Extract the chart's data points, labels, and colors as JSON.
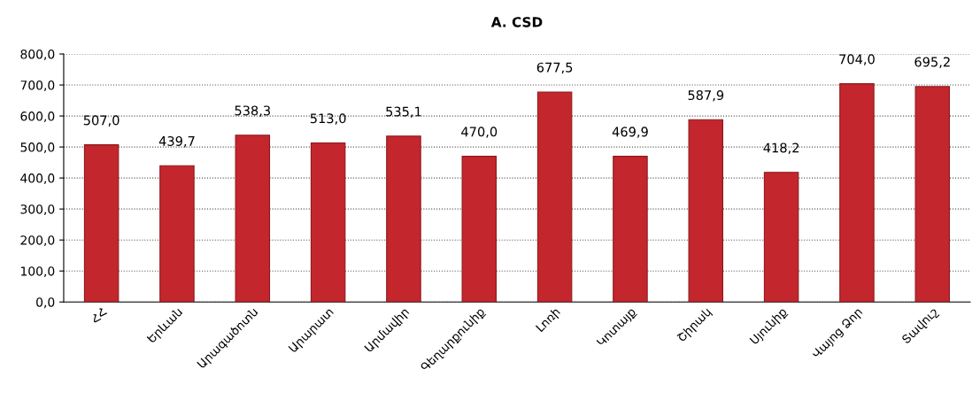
{
  "chart_data": {
    "type": "bar",
    "title": "A. CSD",
    "categories": [
      "ՀՀ",
      "Երևան",
      "Արագածոտն",
      "Արարատ",
      "Արմավիր",
      "Գեղարքունիք",
      "Լոռի",
      "Կոտայք",
      "Շիրակ",
      "Սյունիք",
      "Վայոց Ձոր",
      "Տավուշ"
    ],
    "values": [
      507.0,
      439.7,
      538.3,
      513.0,
      535.1,
      470.0,
      677.5,
      469.9,
      587.9,
      418.2,
      704.0,
      695.2
    ],
    "value_labels": [
      "507,0",
      "439,7",
      "538,3",
      "513,0",
      "535,1",
      "470,0",
      "677,5",
      "469,9",
      "587,9",
      "418,2",
      "704,0",
      "695,2"
    ],
    "color": "#c3262c",
    "ylim": [
      0,
      800
    ],
    "yticks": [
      {
        "value": 0,
        "label": "0,0"
      },
      {
        "value": 100,
        "label": "100,0"
      },
      {
        "value": 200,
        "label": "200,0"
      },
      {
        "value": 300,
        "label": "300,0"
      },
      {
        "value": 400,
        "label": "400,0"
      },
      {
        "value": 500,
        "label": "500,0"
      },
      {
        "value": 600,
        "label": "600,0"
      },
      {
        "value": 700,
        "label": "700,0"
      },
      {
        "value": 800,
        "label": "800,0"
      }
    ],
    "grid": "y",
    "legend": false
  }
}
